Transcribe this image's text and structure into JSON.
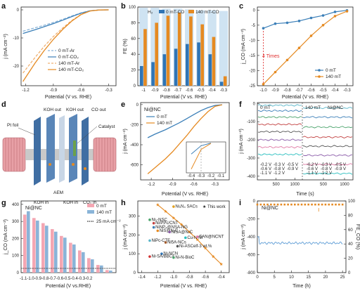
{
  "panel_letters": [
    "a",
    "b",
    "c",
    "d",
    "e",
    "f",
    "g",
    "h",
    "i"
  ],
  "chart_data": [
    {
      "panel": "a",
      "type": "line",
      "xlabel": "Potential (V vs. RHE)",
      "ylabel": "j (mA cm⁻²)",
      "xlim": [
        -1.25,
        -0.22
      ],
      "ylim": [
        -27,
        1
      ],
      "xticks": [
        "-1.2",
        "-0.9",
        "-0.6",
        "-0.3"
      ],
      "yticks": [
        "0",
        "-10",
        "-20"
      ],
      "series": [
        {
          "name": "0 mT-Ar",
          "color": "#8ab4d8",
          "dash": true,
          "x": [
            -1.23,
            -1.1,
            -1.0,
            -0.9,
            -0.8,
            -0.7,
            -0.6,
            -0.5,
            -0.4,
            -0.3
          ],
          "y": [
            -7.6,
            -6.4,
            -5.5,
            -4.5,
            -3.4,
            -2.2,
            -1.1,
            -0.3,
            -0.05,
            0
          ]
        },
        {
          "name": "0 mT-CO₂",
          "color": "#3b7fb8",
          "dash": false,
          "x": [
            -1.23,
            -1.1,
            -1.0,
            -0.9,
            -0.8,
            -0.7,
            -0.6,
            -0.5,
            -0.4,
            -0.3
          ],
          "y": [
            -8.4,
            -7.1,
            -6.0,
            -4.9,
            -3.7,
            -2.4,
            -1.2,
            -0.35,
            -0.05,
            0
          ]
        },
        {
          "name": "140 mT-Ar",
          "color": "#f0b070",
          "dash": true,
          "x": [
            -1.23,
            -1.1,
            -1.0,
            -0.9,
            -0.8,
            -0.7,
            -0.6,
            -0.5,
            -0.4,
            -0.3
          ],
          "y": [
            -22.5,
            -17.0,
            -13.0,
            -9.5,
            -6.5,
            -3.8,
            -1.6,
            -0.4,
            -0.05,
            0
          ]
        },
        {
          "name": "140 mT-CO₂",
          "color": "#e58a22",
          "dash": false,
          "x": [
            -1.23,
            -1.1,
            -1.0,
            -0.9,
            -0.8,
            -0.7,
            -0.6,
            -0.5,
            -0.4,
            -0.3
          ],
          "y": [
            -25.5,
            -19.0,
            -14.5,
            -10.5,
            -7.0,
            -4.0,
            -1.7,
            -0.4,
            -0.05,
            0
          ]
        }
      ]
    },
    {
      "panel": "b",
      "type": "bar",
      "xlabel": "Potential (V vs. RHE)",
      "ylabel": "FE (%)",
      "ylim": [
        0,
        100
      ],
      "yticks": [
        "0",
        "20",
        "40",
        "60",
        "80",
        "100"
      ],
      "categories": [
        "-1",
        "-0.9",
        "-0.8",
        "-0.7",
        "-0.6",
        "-0.5",
        "-0.4",
        "-0.3"
      ],
      "series": [
        {
          "name": "H₂",
          "color": "#cfe3f2",
          "values": [
            99,
            99,
            98,
            98,
            97,
            96,
            96,
            95
          ]
        },
        {
          "name": "0 mT-CO",
          "color": "#2f74b5",
          "values": [
            25,
            30,
            40,
            47,
            53,
            55,
            40,
            5
          ]
        },
        {
          "name": "140 mT-CO",
          "color": "#e58a22",
          "values": [
            72,
            80,
            89,
            93,
            88,
            78,
            62,
            12
          ]
        }
      ]
    },
    {
      "panel": "c",
      "type": "line",
      "xlabel": "Potential (V vs. RHE)",
      "ylabel": "j_CO (mA cm⁻²)",
      "xlim": [
        -1.05,
        -0.25
      ],
      "ylim": [
        -25,
        1
      ],
      "xticks": [
        "-1.0",
        "-0.9",
        "-0.8",
        "-0.7",
        "-0.6",
        "-0.5",
        "-0.4",
        "-0.3"
      ],
      "yticks": [
        "0",
        "-5",
        "-10",
        "-15",
        "-20",
        "-25"
      ],
      "annotation": "4 Times",
      "series": [
        {
          "name": "0 mT",
          "color": "#3b7fb8",
          "x": [
            -1.0,
            -0.9,
            -0.8,
            -0.7,
            -0.6,
            -0.5,
            -0.4,
            -0.3
          ],
          "y": [
            -6.0,
            -4.5,
            -4.2,
            -3.6,
            -2.6,
            -1.8,
            -0.6,
            -0.1
          ]
        },
        {
          "name": "140 mT",
          "color": "#e58a22",
          "x": [
            -1.0,
            -0.9,
            -0.8,
            -0.7,
            -0.6,
            -0.5,
            -0.4,
            -0.3
          ],
          "y": [
            -24.5,
            -20.5,
            -16.5,
            -12.5,
            -8.5,
            -5.0,
            -2.0,
            -0.4
          ]
        }
      ]
    },
    {
      "panel": "e",
      "type": "line",
      "title": "Ni@NC",
      "xlabel": "Potential (V vs. RHE)",
      "ylabel": "j (mA cm⁻²)",
      "xlim": [
        -1.35,
        -0.1
      ],
      "ylim": [
        -750,
        20
      ],
      "xticks": [
        "-1.2",
        "-0.9",
        "-0.6",
        "-0.3"
      ],
      "yticks": [
        "0",
        "-200",
        "-400",
        "-600"
      ],
      "inset_xticks": [
        "-0.4",
        "-0.3",
        "-0.2",
        "-0.1"
      ],
      "series": [
        {
          "name": "0 mT",
          "color": "#3b7fb8",
          "x": [
            -1.25,
            -1.15,
            -1.0,
            -0.9,
            -0.8,
            -0.7,
            -0.6,
            -0.5,
            -0.4,
            -0.3,
            -0.2
          ],
          "y": [
            -330,
            -295,
            -250,
            -215,
            -180,
            -140,
            -100,
            -60,
            -30,
            -8,
            -1
          ]
        },
        {
          "name": "140 mT",
          "color": "#e58a22",
          "x": [
            -1.25,
            -1.15,
            -1.0,
            -0.9,
            -0.8,
            -0.7,
            -0.6,
            -0.5,
            -0.4,
            -0.3,
            -0.2
          ],
          "y": [
            -690,
            -630,
            -540,
            -470,
            -390,
            -310,
            -220,
            -140,
            -70,
            -18,
            -2
          ]
        }
      ]
    },
    {
      "panel": "f",
      "type": "line",
      "title": "Ni@NC",
      "left_label": "0 mT",
      "right_label": "140 mT",
      "xlabel": "Time (s)",
      "ylabel": "j (mA cm⁻²)",
      "ylim": [
        -420,
        5
      ],
      "yticks": [
        "0",
        "-100",
        "-200",
        "-300",
        "-400"
      ],
      "xticks_left": [
        "500",
        "1000"
      ],
      "xticks_right": [
        "500",
        "1000"
      ],
      "legend_left": [
        "-0.2 V",
        "-0.3 V",
        "-0.5 V",
        "-0.6 V",
        "-0.8 V",
        "-0.9 V",
        "-1.1 V",
        "-1.2 V"
      ],
      "legend_right": [
        "-0.2 V",
        "-0.3 V",
        "-0.5 V",
        "-0.6 V",
        "-0.8 V",
        "-0.9 V",
        "-1.1 V",
        "-1.2 V"
      ],
      "series_left": [
        {
          "color": "#58b5c9",
          "level": -10
        },
        {
          "color": "#3b7fb8",
          "level": -40
        },
        {
          "color": "#4aa36b",
          "level": -75
        },
        {
          "color": "#c24040",
          "level": -115
        },
        {
          "color": "#555555",
          "level": -155
        },
        {
          "color": "#8a5aa8",
          "level": -200
        },
        {
          "color": "#e07aa5",
          "level": -240
        },
        {
          "color": "#2bbfbf",
          "level": -280
        }
      ],
      "series_right": [
        {
          "color": "#58b5c9",
          "level": -25
        },
        {
          "color": "#3b7fb8",
          "level": -75
        },
        {
          "color": "#4aa36b",
          "level": -130
        },
        {
          "color": "#c24040",
          "level": -185
        },
        {
          "color": "#555555",
          "level": -235
        },
        {
          "color": "#8a5aa8",
          "level": -285
        },
        {
          "color": "#e07aa5",
          "level": -335
        },
        {
          "color": "#2bbfbf",
          "level": -385
        }
      ]
    },
    {
      "panel": "g",
      "type": "bar",
      "title": "Ni@NC",
      "xlabel": "Potential (V vs.RHE)",
      "ylabel": "j_CO (mA cm⁻²)",
      "ylim": [
        0,
        420
      ],
      "yticks": [
        "0",
        "100",
        "200",
        "300",
        "400"
      ],
      "categories": [
        "-1.1",
        "-1.0",
        "-0.9",
        "-0.8",
        "-0.7",
        "-0.6",
        "-0.5",
        "-0.4",
        "-0.3",
        "-0.2"
      ],
      "tick_labels": "-1.1-1.0-0.9-0.8-0.7-0.6-0.5-0.4-0.3-0.2",
      "ref_line": 25,
      "ref_label": "25 mA cm⁻²",
      "series": [
        {
          "name": "0 mT",
          "color": "#f4a6b2",
          "values": [
            340,
            320,
            290,
            255,
            215,
            175,
            130,
            85,
            45,
            15
          ]
        },
        {
          "name": "140 mT",
          "color": "#8ab4d8",
          "values": [
            360,
            305,
            275,
            240,
            205,
            165,
            120,
            78,
            42,
            12
          ]
        }
      ]
    },
    {
      "panel": "h",
      "type": "scatter",
      "xlabel": "Potential (V vs. RHE)",
      "ylabel": "j (mA cm⁻²)",
      "xlim": [
        -1.45,
        -0.3
      ],
      "ylim": [
        0,
        380
      ],
      "xticks": [
        "-1.4",
        "-1.2",
        "-1.0",
        "-0.8",
        "-0.6",
        "-0.4"
      ],
      "yticks": [
        "0",
        "100",
        "200",
        "300"
      ],
      "this_work_label": "This work",
      "this_work": {
        "x": [
          -1.2,
          -1.1,
          -1.0,
          -0.9,
          -0.8,
          -0.7,
          -0.6,
          -0.5,
          -0.4
        ],
        "y": [
          360,
          325,
          290,
          255,
          215,
          175,
          130,
          85,
          45
        ]
      },
      "refs": [
        {
          "label": "Ni₁-NSC",
          "x": -1.3,
          "y": 280,
          "color": "#4aa36b"
        },
        {
          "label": "Ni₁N₄ SACs",
          "x": -1.0,
          "y": 350,
          "color": "#e0a020"
        },
        {
          "label": "Ni/PPc/CNT",
          "x": -1.25,
          "y": 262,
          "color": "#c24040"
        },
        {
          "label": "NiNP₄@NSA-NG",
          "x": -1.25,
          "y": 240,
          "color": "#3b7fb8"
        },
        {
          "label": "NiS@N-C",
          "x": -1.2,
          "y": 222,
          "color": "#e58a22"
        },
        {
          "label": "NiSA@N-C",
          "x": -1.05,
          "y": 215,
          "color": "#8a5aa8"
        },
        {
          "label": "Cu-N-Ni",
          "x": -0.85,
          "y": 185,
          "color": "#2bbfbf"
        },
        {
          "label": "SAN@NCNT",
          "x": -0.7,
          "y": 190,
          "color": "#e07aa5"
        },
        {
          "label": "NiPc-CTF",
          "x": -1.3,
          "y": 170,
          "color": "#58b5c9"
        },
        {
          "label": "Ni5A-NCs",
          "x": -1.1,
          "y": 160,
          "color": "#a05a2c"
        },
        {
          "label": "Ni-ASCelf-3 wt.%",
          "x": -0.95,
          "y": 140,
          "color": "#555555"
        },
        {
          "label": "Ni-NCN",
          "x": -1.15,
          "y": 100,
          "color": "#2f74b5"
        },
        {
          "label": "Ni-SA/BBCs",
          "x": -1.3,
          "y": 85,
          "color": "#d03030"
        },
        {
          "label": "Ni-N-BioC",
          "x": -1.0,
          "y": 80,
          "color": "#4aa36b"
        }
      ]
    },
    {
      "panel": "i",
      "type": "line",
      "title": "Ni@NC",
      "xlabel": "Time (h)",
      "ylabel": "j (mA cm⁻²)",
      "ylabel2": "FE_CO (%)",
      "xlim": [
        0,
        26
      ],
      "ylim": [
        -800,
        0
      ],
      "ylim2": [
        0,
        100
      ],
      "xticks": [
        "0",
        "5",
        "10",
        "15",
        "20",
        "25"
      ],
      "yticks": [
        "0",
        "-200",
        "-400",
        "-600",
        "-800"
      ],
      "yticks2": [
        "0",
        "20",
        "40",
        "60",
        "80",
        "100"
      ],
      "current_level": -470,
      "fe_level": 95,
      "current_color": "#5b9bd5",
      "fe_color": "#e58a22"
    }
  ],
  "diagram_d": {
    "labels": [
      "Pt foil",
      "KOH out",
      "KOH out",
      "CO out",
      "Catalyst",
      "AEM",
      "KOH in",
      "KOH in",
      "CO₂ in"
    ]
  },
  "legends": {
    "a": [
      "0 mT-Ar",
      "0 mT-CO₂",
      "140 mT-Ar",
      "140 mT-CO₂"
    ],
    "b": [
      "H₂",
      "0 mT-CO",
      "140 mT-CO"
    ],
    "c": [
      "0 mT",
      "140 mT"
    ],
    "e": [
      "0 mT",
      "140 mT"
    ],
    "g": [
      "0 mT",
      "140 mT"
    ]
  }
}
